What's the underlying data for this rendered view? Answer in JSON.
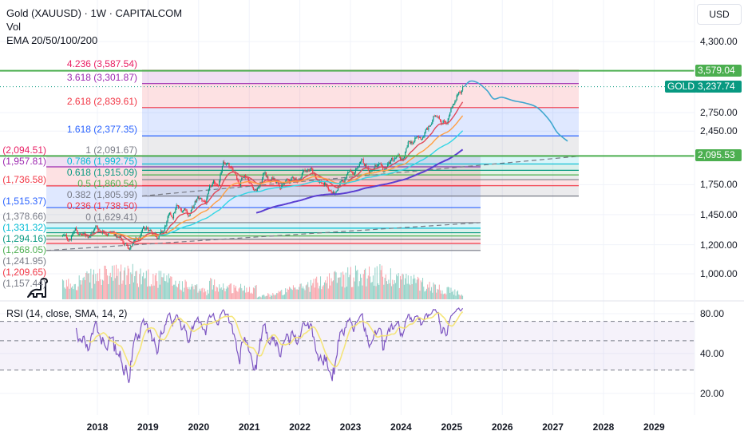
{
  "header": {
    "title": "Gold (XAUUSD) · 1W · CAPITALCOM",
    "indicators": [
      "Vol",
      "EMA 20/50/100/200"
    ],
    "rsi_label": "RSI (14, close, SMA, 14, 2)",
    "currency_button": "USD",
    "symbol_tag": "GOLD"
  },
  "colors": {
    "up": "#089981",
    "down": "#f23645",
    "ema20": "#e04a5a",
    "ema50": "#ff9f43",
    "ema100": "#33d6e6",
    "ema200": "#5b3fd1",
    "rsi": "#7e57c2",
    "rsi_sma": "#f5e36b",
    "forecast": "#3fa7cf",
    "hline": "#4caf50",
    "price_line": "#089981"
  },
  "chart_data": {
    "type": "candlestick",
    "title": "Gold (XAUUSD) · 1W · CAPITALCOM",
    "y_scale": "log",
    "y_ticks": [
      "4,300.00",
      "2,750.00",
      "2,450.00",
      "1,750.00",
      "1,450.00",
      "1,200.00",
      "1,000.00"
    ],
    "y_tick_values": [
      4300,
      2750,
      2450,
      1750,
      1450,
      1200,
      1000
    ],
    "x_ticks": [
      "2018",
      "2019",
      "2020",
      "2021",
      "2022",
      "2023",
      "2024",
      "2025",
      "2026",
      "2027",
      "2028",
      "2029"
    ],
    "monthly_close_start": "2017-05",
    "monthly_close": [
      1268,
      1242,
      1269,
      1322,
      1280,
      1270,
      1275,
      1303,
      1345,
      1318,
      1325,
      1315,
      1298,
      1253,
      1223,
      1201,
      1192,
      1215,
      1222,
      1282,
      1321,
      1313,
      1292,
      1284,
      1305,
      1409,
      1413,
      1520,
      1472,
      1513,
      1463,
      1517,
      1589,
      1585,
      1577,
      1687,
      1730,
      1781,
      1975,
      1967,
      1886,
      1879,
      1776,
      1898,
      1847,
      1734,
      1708,
      1769,
      1906,
      1770,
      1814,
      1813,
      1757,
      1783,
      1775,
      1829,
      1796,
      1909,
      1937,
      1897,
      1837,
      1807,
      1766,
      1711,
      1660,
      1633,
      1768,
      1824,
      1928,
      1836,
      1969,
      1990,
      1962,
      1919,
      1965,
      1940,
      1849,
      1983,
      2036,
      2063,
      2040,
      2044,
      2230,
      2286,
      2327,
      2326,
      2447,
      2503,
      2634,
      2744,
      2643,
      2625,
      2798,
      2858,
      3124,
      3237.74
    ],
    "last_price": "3,237.74",
    "last_price_value": 3237.74,
    "emas": [
      20,
      50,
      100,
      200
    ],
    "horizontal_lines": [
      {
        "value": 3579.04,
        "label": "3,579.04"
      },
      {
        "value": 2095.53,
        "label": "2,095.53"
      }
    ],
    "fib_primary": {
      "start": {
        "date": 2018.9,
        "price": 1629.41
      },
      "end": {
        "date": 2027.6,
        "price": 2091.67
      },
      "levels": [
        {
          "ratio": 4.236,
          "price": 3587.54,
          "label": "4.236 (3,587.54)",
          "color": "#e91e63"
        },
        {
          "ratio": 3.618,
          "price": 3301.87,
          "label": "3.618 (3,301.87)",
          "color": "#9c27b0"
        },
        {
          "ratio": 2.618,
          "price": 2839.61,
          "label": "2.618 (2,839.61)",
          "color": "#f23645"
        },
        {
          "ratio": 1.618,
          "price": 2377.35,
          "label": "1.618 (2,377.35)",
          "color": "#2962ff"
        },
        {
          "ratio": 1,
          "price": 2091.67,
          "label": "1 (2,091.67)",
          "color": "#787b86"
        },
        {
          "ratio": 0.786,
          "price": 1992.75,
          "label": "0.786 (1,992.75)",
          "color": "#00bcd4"
        },
        {
          "ratio": 0.618,
          "price": 1915.09,
          "label": "0.618 (1,915.09)",
          "color": "#089981"
        },
        {
          "ratio": 0.5,
          "price": 1860.54,
          "label": "0.5 (1,860.54)",
          "color": "#4caf50"
        },
        {
          "ratio": 0.382,
          "price": 1805.99,
          "label": "0.382 (1,805.99)",
          "color": "#787b86"
        },
        {
          "ratio": 0.236,
          "price": 1738.5,
          "label": "0.236 (1,738.50)",
          "color": "#f23645"
        },
        {
          "ratio": 0,
          "price": 1629.41,
          "label": "0 (1,629.41)",
          "color": "#787b86"
        }
      ]
    },
    "fib_secondary": {
      "start": {
        "date": 2017.0,
        "price": 1157.44
      },
      "end": {
        "date": 2025.6,
        "price": 1378.66
      },
      "levels": [
        {
          "ratio": 4.236,
          "price": 2094.51,
          "label": "(2,094.51)",
          "color": "#e91e63"
        },
        {
          "ratio": 3.618,
          "price": 1957.81,
          "label": "(1,957.81)",
          "color": "#9c27b0"
        },
        {
          "ratio": 2.618,
          "price": 1736.58,
          "label": "(1,736.58)",
          "color": "#f23645"
        },
        {
          "ratio": 1.618,
          "price": 1515.37,
          "label": "(1,515.37)",
          "color": "#2962ff"
        },
        {
          "ratio": 1,
          "price": 1378.66,
          "label": "(1,378.66)",
          "color": "#787b86"
        },
        {
          "ratio": 0.786,
          "price": 1331.32,
          "label": "(1,331.32)",
          "color": "#00bcd4"
        },
        {
          "ratio": 0.618,
          "price": 1294.16,
          "label": "(1,294.16)",
          "color": "#089981"
        },
        {
          "ratio": 0.5,
          "price": 1268.05,
          "label": "(1,268.05)",
          "color": "#4caf50"
        },
        {
          "ratio": 0.382,
          "price": 1241.95,
          "label": "(1,241.95)",
          "color": "#787b86"
        },
        {
          "ratio": 0.236,
          "price": 1209.65,
          "label": "(1,209.65)",
          "color": "#f23645"
        },
        {
          "ratio": 0,
          "price": 1157.44,
          "label": "(1,157.44)",
          "color": "#787b86"
        }
      ]
    },
    "forecast_path": [
      [
        2025.25,
        3237
      ],
      [
        2025.36,
        3350
      ],
      [
        2025.52,
        3315
      ],
      [
        2025.7,
        3160
      ],
      [
        2025.83,
        3000
      ],
      [
        2025.99,
        3030
      ],
      [
        2026.22,
        2965
      ],
      [
        2026.46,
        2920
      ],
      [
        2026.69,
        2840
      ],
      [
        2026.93,
        2625
      ],
      [
        2027.09,
        2425
      ],
      [
        2027.29,
        2300
      ]
    ],
    "rsi": {
      "period": 14,
      "y_scale": "log",
      "y_ticks": [
        "80.00",
        "40.00",
        "20.00"
      ],
      "y_tick_values": [
        80,
        40,
        20
      ],
      "bands": [
        70,
        50,
        30
      ]
    }
  }
}
